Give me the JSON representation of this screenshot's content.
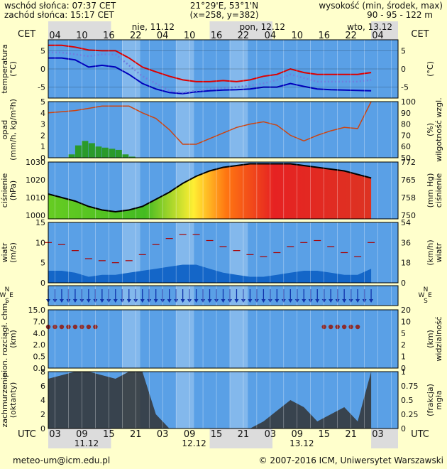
{
  "header": {
    "sunrise": "wschód słońca: 07:37 CET",
    "sunset": "zachód słońca: 15:17 CET",
    "coords": "21°29'E, 53°1'N",
    "grid": "(x=258, y=382)",
    "height_label": "wysokość (min, środek, max)",
    "height_values": "90 - 95 - 122 m"
  },
  "top_axis": {
    "tz": "CET",
    "hours": [
      "04",
      "10",
      "16",
      "22",
      "04",
      "10",
      "16",
      "22",
      "04",
      "10",
      "16",
      "22",
      "04"
    ],
    "days": [
      "nie, 11.12",
      "pon, 12.12",
      "wto, 13.12"
    ]
  },
  "bottom_axis": {
    "tz": "UTC",
    "hours": [
      "03",
      "09",
      "15",
      "21",
      "03",
      "09",
      "15",
      "21",
      "03",
      "09",
      "15",
      "21",
      "03"
    ],
    "days": [
      "11.12",
      "12.12",
      "13.12"
    ]
  },
  "panels": {
    "temperature": {
      "left": [
        "temperatura",
        "(°C)"
      ],
      "right": "(°C)",
      "ticks": [
        "5",
        "0",
        "-5"
      ]
    },
    "precip": {
      "left": [
        "opad",
        "(mm/h, kg/m²h)"
      ],
      "right": [
        "(%)",
        "wilgotność wzgl."
      ],
      "ticks_left": [
        "5",
        "4",
        "3",
        "2",
        "1",
        "0"
      ],
      "ticks_right": [
        "100",
        "90",
        "80",
        "70",
        "60",
        "50"
      ]
    },
    "pressure": {
      "left": [
        "ciśnienie",
        "(hPa)"
      ],
      "right": [
        "(mm Hg)",
        "ciśnienie"
      ],
      "ticks_left": [
        "1030",
        "1020",
        "1010",
        "1000"
      ],
      "ticks_right": [
        "772",
        "765",
        "758",
        "750"
      ]
    },
    "wind": {
      "left": [
        "wiatr",
        "(m/s)"
      ],
      "right": [
        "(km/h)",
        "wiatr"
      ],
      "ticks_left": [
        "15",
        "10",
        "5",
        "0"
      ],
      "ticks_right": [
        "54",
        "36",
        "18",
        "0"
      ]
    },
    "wind_dir": {
      "compass": [
        "N",
        "W",
        "E",
        "S"
      ]
    },
    "visibility": {
      "left": [
        "pion. rozciągł. chm.",
        "(km)"
      ],
      "right": [
        "(km)",
        "widzialność"
      ],
      "ticks_left": [
        "15.0",
        "7.0",
        "4.0",
        "2.0",
        "0.5",
        "0.0"
      ],
      "ticks_right": [
        "20",
        "10",
        "5",
        "2",
        "1",
        "0"
      ]
    },
    "clouds": {
      "left": [
        "zachmurzenie",
        "(oktanty)"
      ],
      "right": [
        "(frakcja)",
        "mgła"
      ],
      "ticks_left": [
        "8",
        "6",
        "4",
        "2",
        "0"
      ],
      "ticks_right": [
        "1",
        "0.75",
        "0.5",
        "0.25",
        "0"
      ]
    }
  },
  "footer": {
    "email": "meteo-um@icm.edu.pl",
    "copyright": "© 2007-2016 ICM, Uniwersytet Warszawski"
  },
  "colors": {
    "background": "#ffffcc",
    "plot_blue": "#5aa0e6",
    "temp_max": "#dd0000",
    "temp_min": "#0000bb",
    "temp_dewpoint": "#6f7fe0",
    "precip": "#2a9a2a",
    "humidity": "#cc4411",
    "wind_gust": "#aa0000",
    "wind_fill": "#1466c8",
    "cloud_fill": "#333333"
  },
  "chart_data": [
    {
      "type": "line",
      "panel": "temperature",
      "x": [
        0,
        6,
        12,
        18,
        24,
        30,
        36,
        42,
        48,
        54,
        60,
        66,
        72,
        78,
        84,
        90,
        96,
        102,
        108,
        114,
        120,
        126,
        132,
        138,
        144
      ],
      "series": [
        {
          "name": "max",
          "values": [
            6.5,
            6.5,
            6.0,
            5.2,
            5.0,
            5.0,
            3.0,
            0.5,
            -0.8,
            -2.0,
            -3.0,
            -3.5,
            -3.5,
            -3.2,
            -3.5,
            -3.0,
            -2.0,
            -1.5,
            0.0,
            -1.0,
            -1.5,
            -1.5,
            -1.5,
            -1.5,
            -1.0
          ]
        },
        {
          "name": "min",
          "values": [
            3.0,
            3.0,
            2.5,
            0.5,
            1.0,
            0.5,
            -1.5,
            -4.0,
            -5.5,
            -6.5,
            -6.8,
            -6.3,
            -6.0,
            -5.8,
            -5.7,
            -5.5,
            -5.0,
            -5.0,
            -4.0,
            -4.8,
            -5.5,
            -5.7,
            -5.8,
            -5.9,
            -6.0
          ]
        },
        {
          "name": "dewpoint",
          "values": [
            4.5,
            4.5,
            4.0,
            3.5,
            4.0,
            4.0,
            1.0,
            -2.0,
            -4.0,
            -6.0,
            -6.5,
            -6.0,
            -5.5,
            -5.3,
            -5.0,
            -4.5,
            -4.0,
            -3.0,
            -1.5,
            -2.5,
            -3.5,
            -3.5,
            -3.5,
            -3.5,
            -3.0
          ]
        }
      ],
      "ylim": [
        -8,
        8
      ]
    },
    {
      "type": "bar",
      "panel": "precip",
      "x": [
        9,
        12,
        15,
        18,
        21,
        24,
        27,
        30,
        33,
        36
      ],
      "values": [
        0.3,
        1.1,
        1.5,
        1.3,
        1.0,
        0.9,
        0.8,
        0.7,
        0.3,
        0.1
      ],
      "ylim": [
        0,
        5
      ]
    },
    {
      "type": "line",
      "panel": "humidity",
      "x": [
        0,
        6,
        12,
        18,
        24,
        30,
        36,
        42,
        48,
        54,
        60,
        66,
        72,
        78,
        84,
        90,
        96,
        102,
        108,
        114,
        120,
        126,
        132,
        138,
        144
      ],
      "values": [
        90,
        91,
        92,
        94,
        96,
        96,
        96,
        90,
        85,
        75,
        62,
        62,
        67,
        72,
        77,
        80,
        82,
        79,
        70,
        65,
        70,
        74,
        77,
        76,
        100
      ],
      "ylim": [
        50,
        100
      ]
    },
    {
      "type": "area",
      "panel": "pressure",
      "x": [
        0,
        6,
        12,
        18,
        24,
        30,
        36,
        42,
        48,
        54,
        60,
        66,
        72,
        78,
        84,
        90,
        96,
        102,
        108,
        114,
        120,
        126,
        132,
        138,
        144
      ],
      "values": [
        1012,
        1010,
        1008,
        1005,
        1003,
        1002,
        1003,
        1005,
        1009,
        1013,
        1018,
        1022,
        1025,
        1027,
        1028,
        1029,
        1029,
        1029,
        1029,
        1028,
        1027,
        1026,
        1025,
        1023,
        1021
      ],
      "ylim": [
        998,
        1030
      ]
    },
    {
      "type": "line",
      "panel": "wind",
      "x": [
        0,
        6,
        12,
        18,
        24,
        30,
        36,
        42,
        48,
        54,
        60,
        66,
        72,
        78,
        84,
        90,
        96,
        102,
        108,
        114,
        120,
        126,
        132,
        138,
        144
      ],
      "series": [
        {
          "name": "gust",
          "values": [
            10,
            9.5,
            8,
            6,
            5.5,
            5,
            5.5,
            7,
            9.5,
            11,
            12,
            12,
            10.5,
            9,
            8,
            7,
            6.5,
            7.5,
            9,
            10,
            10.5,
            9,
            7.5,
            6.5,
            10
          ]
        },
        {
          "name": "mean",
          "values": [
            3,
            3,
            2.5,
            1.5,
            2,
            2,
            2.5,
            3,
            3.5,
            4,
            4.5,
            4.5,
            3.5,
            2.5,
            2,
            1.5,
            1.5,
            2,
            2.5,
            3,
            3,
            2.5,
            2,
            2,
            3.5
          ]
        }
      ],
      "ylim": [
        0,
        15
      ]
    },
    {
      "type": "area",
      "panel": "clouds",
      "x": [
        0,
        6,
        12,
        18,
        24,
        30,
        36,
        42,
        48,
        54,
        60,
        66,
        72,
        78,
        84,
        90,
        96,
        102,
        108,
        114,
        120,
        126,
        132,
        138,
        144
      ],
      "values": [
        7,
        7.5,
        8,
        8,
        7.5,
        7,
        8,
        8,
        2,
        0,
        0,
        0,
        0,
        0,
        0,
        0,
        1,
        2.5,
        4,
        3,
        1,
        2,
        3,
        1,
        8
      ],
      "ylim": [
        0,
        8
      ]
    }
  ]
}
